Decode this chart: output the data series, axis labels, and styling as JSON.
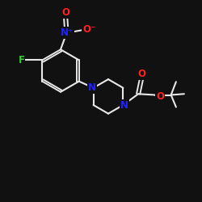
{
  "background_color": "#111111",
  "bond_color": "#e8e8e8",
  "atom_colors": {
    "F": "#33cc33",
    "N": "#2222ff",
    "O": "#ff2222",
    "C": "#e8e8e8"
  },
  "font_size_atoms": 8.5,
  "figsize": [
    2.5,
    2.5
  ],
  "dpi": 100
}
